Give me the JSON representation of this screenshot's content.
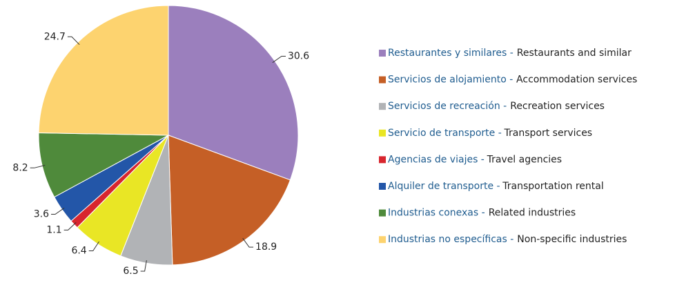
{
  "chart_data": {
    "type": "pie",
    "categories": [
      "Restaurantes y similares -",
      "Servicios de alojamiento -",
      "Servicios de recreación -",
      "Servicio de transporte -",
      "Agencias de viajes -",
      "Alquiler de transporte -",
      "Industrias conexas -",
      "Industrias no específicas -"
    ],
    "categories_en": [
      "Restaurants and similar",
      "Accommodation services",
      "Recreation services",
      "Transport services",
      "Travel agencies",
      "Transportation rental",
      "Related industries",
      "Non-specific industries"
    ],
    "values": [
      30.6,
      18.9,
      6.5,
      6.4,
      1.1,
      3.6,
      8.2,
      24.7
    ],
    "colors": [
      "#9b7fbd",
      "#c55f26",
      "#b1b3b6",
      "#e9e625",
      "#d8262e",
      "#2356a8",
      "#4f8a3b",
      "#fdd36f"
    ]
  }
}
